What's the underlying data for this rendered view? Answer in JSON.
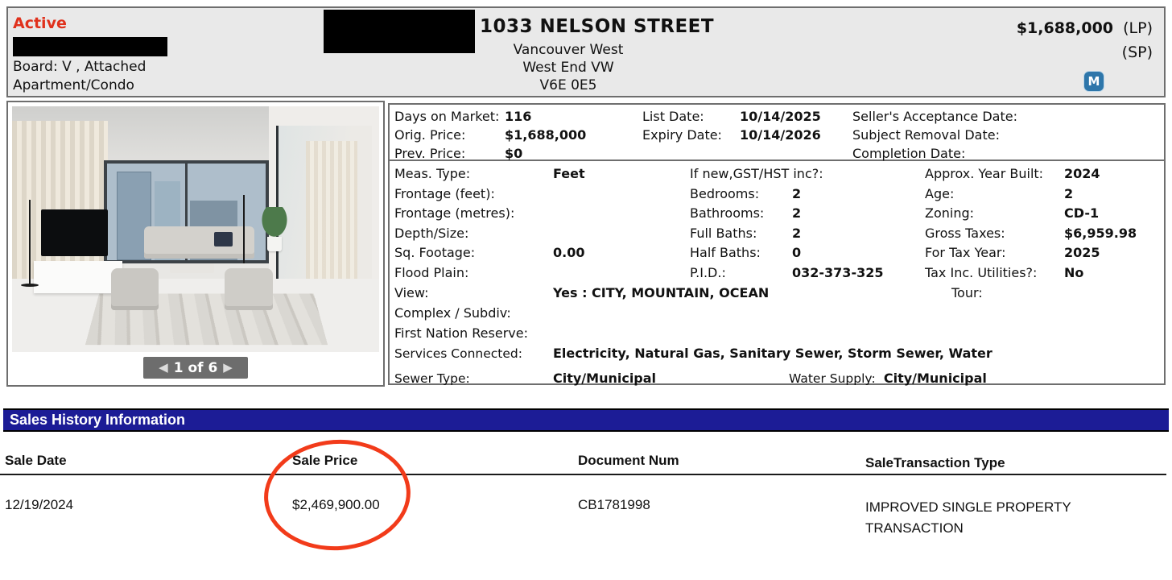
{
  "colors": {
    "status-red": "#e0311c",
    "navy": "#1c1c96",
    "m-blue": "#2e76aa",
    "annotation-red": "#f23b1a",
    "pager-gray": "#6d6d6d"
  },
  "header": {
    "status": "Active",
    "board_line": "Board: V , Attached",
    "property_type": "Apartment/Condo",
    "address": "1033 NELSON STREET",
    "city": "Vancouver West",
    "area": "West End VW",
    "postal_code": "V6E 0E5",
    "list_price": "$1,688,000",
    "lp_label": "(LP)",
    "sp_label": "(SP)",
    "m_badge": "M"
  },
  "photo": {
    "pager_prev": "◀",
    "pager_label": "1 of 6",
    "pager_next": "▶"
  },
  "dates_box": {
    "col1": [
      {
        "label": "Days on Market:",
        "value": "116"
      },
      {
        "label": "Orig. Price:",
        "value": "$1,688,000"
      },
      {
        "label": "Prev. Price:",
        "value": "$0"
      }
    ],
    "col2": [
      {
        "label": "List Date:",
        "value": "10/14/2025"
      },
      {
        "label": "Expiry Date:",
        "value": "10/14/2026"
      }
    ],
    "col3": [
      {
        "label": "Seller's Acceptance Date:",
        "value": ""
      },
      {
        "label": "Subject Removal Date:",
        "value": ""
      },
      {
        "label": "Completion Date:",
        "value": ""
      }
    ]
  },
  "details_box": {
    "col1": [
      {
        "label": "Meas. Type:",
        "value": "Feet"
      },
      {
        "label": "Frontage (feet):",
        "value": ""
      },
      {
        "label": "Frontage (metres):",
        "value": ""
      },
      {
        "label": "Depth/Size:",
        "value": ""
      },
      {
        "label": "Sq. Footage:",
        "value": "0.00"
      },
      {
        "label": "Flood Plain:",
        "value": ""
      }
    ],
    "col2": [
      {
        "label": "If new,GST/HST inc?:",
        "value": ""
      },
      {
        "label": "Bedrooms:",
        "value": "2"
      },
      {
        "label": "Bathrooms:",
        "value": "2"
      },
      {
        "label": "Full Baths:",
        "value": "2"
      },
      {
        "label": "Half Baths:",
        "value": "0"
      },
      {
        "label": "P.I.D.:",
        "value": "032-373-325"
      }
    ],
    "col3": [
      {
        "label": "Approx. Year Built:",
        "value": "2024"
      },
      {
        "label": "Age:",
        "value": "2"
      },
      {
        "label": "Zoning:",
        "value": "CD-1"
      },
      {
        "label": "Gross Taxes:",
        "value": "$6,959.98"
      },
      {
        "label": "For Tax Year:",
        "value": "2025"
      },
      {
        "label": "Tax Inc. Utilities?:",
        "value": "No"
      }
    ],
    "view_label": "View:",
    "view_value": "Yes :  CITY, MOUNTAIN, OCEAN",
    "tour_label": "Tour:",
    "complex_label": "Complex / Subdiv:",
    "first_nation_label": "First Nation Reserve:",
    "services_label": "Services Connected:",
    "services_value": "Electricity, Natural Gas, Sanitary Sewer, Storm Sewer, Water",
    "sewer_label": "Sewer Type:",
    "sewer_value": "City/Municipal",
    "water_label": "Water Supply:",
    "water_value": "City/Municipal"
  },
  "sales_history": {
    "title": "Sales History Information",
    "columns": [
      "Sale Date",
      "Sale Price",
      "Document Num",
      "SaleTransaction Type"
    ],
    "rows": [
      [
        "12/19/2024",
        "$2,469,900.00",
        "CB1781998",
        "IMPROVED SINGLE PROPERTY TRANSACTION"
      ]
    ]
  }
}
